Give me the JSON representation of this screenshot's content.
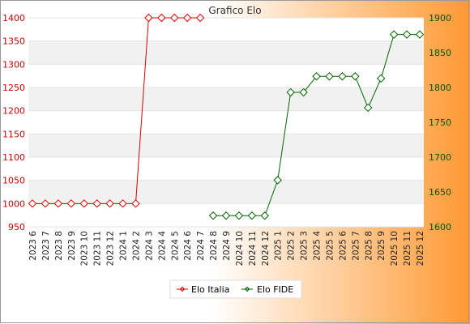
{
  "chart_data": {
    "type": "line",
    "title": "Grafico Elo",
    "categories": [
      "2023 6",
      "2023 7",
      "2023 8",
      "2023 9",
      "2023 10",
      "2023 11",
      "2023 12",
      "2024 1",
      "2024 2",
      "2024 3",
      "2024 4",
      "2024 5",
      "2024 6",
      "2024 7",
      "2024 8",
      "2024 9",
      "2024 10",
      "2024 11",
      "2024 12",
      "2025 1",
      "2025 2",
      "2025 3",
      "2025 4",
      "2025 5",
      "2025 6",
      "2025 7",
      "2025 8",
      "2025 9",
      "2025 10",
      "2025 11",
      "2025 12"
    ],
    "y_left": {
      "min": 950,
      "max": 1400,
      "ticks": [
        950,
        1000,
        1050,
        1100,
        1150,
        1200,
        1250,
        1300,
        1350,
        1400
      ]
    },
    "y_right": {
      "min": 1600,
      "max": 1900,
      "ticks": [
        1600,
        1650,
        1700,
        1750,
        1800,
        1850,
        1900
      ]
    },
    "series": [
      {
        "name": "Elo Italia",
        "axis": "left",
        "color": "#dd0000",
        "values": [
          1000,
          1000,
          1000,
          1000,
          1000,
          1000,
          1000,
          1000,
          1000,
          1400,
          1400,
          1400,
          1400,
          1400,
          null,
          null,
          null,
          null,
          null,
          null,
          null,
          null,
          null,
          null,
          null,
          null,
          null,
          null,
          null,
          null,
          null
        ]
      },
      {
        "name": "Elo FIDE",
        "axis": "right",
        "color": "#006600",
        "values": [
          null,
          null,
          null,
          null,
          null,
          null,
          null,
          null,
          null,
          null,
          null,
          null,
          null,
          null,
          1616,
          1616,
          1616,
          1616,
          1616,
          1667,
          1793,
          1793,
          1816,
          1816,
          1816,
          1816,
          1771,
          1813,
          1876,
          1876,
          1876
        ]
      }
    ],
    "grid": "horizontal bands",
    "legend_position": "bottom"
  },
  "colors": {
    "left_axis_text": "#cc0000",
    "right_axis_text": "#005500",
    "background_gradient_from": "#ffffff",
    "background_gradient_to": "#ff9933"
  }
}
